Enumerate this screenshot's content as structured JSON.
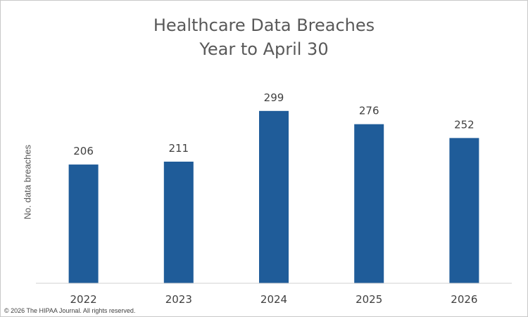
{
  "chart_data": {
    "type": "bar",
    "title": "Healthcare Data Breaches",
    "subtitle": "Year to April 30",
    "xlabel": "",
    "ylabel": "No. data breaches",
    "categories": [
      "2022",
      "2023",
      "2024",
      "2025",
      "2026"
    ],
    "values": [
      206,
      211,
      299,
      276,
      252
    ],
    "ylim": [
      0,
      340
    ],
    "grid": false,
    "legend": "none",
    "bar_color": "#1F5C99",
    "data_labels": true
  },
  "footer": {
    "copyright": "© 2026 The HIPAA Journal. All rights reserved."
  }
}
